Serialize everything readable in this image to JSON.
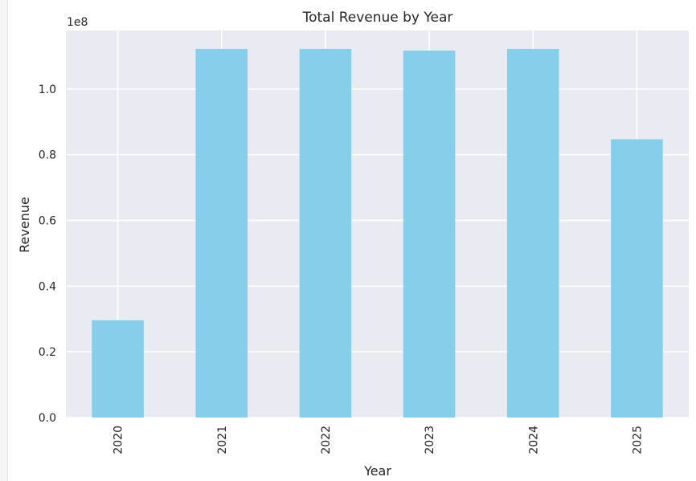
{
  "chart_data": {
    "type": "bar",
    "title": "Total Revenue by Year",
    "xlabel": "Year",
    "ylabel": "Revenue",
    "offset_label": "1e8",
    "categories": [
      "2020",
      "2021",
      "2022",
      "2023",
      "2024",
      "2025"
    ],
    "values": [
      29600000,
      112200000,
      112200000,
      111700000,
      112200000,
      84700000
    ],
    "ylim": [
      0,
      117800000
    ],
    "yticks": [
      0,
      20000000,
      40000000,
      60000000,
      80000000,
      100000000
    ],
    "ytick_labels": [
      "0.0",
      "0.2",
      "0.4",
      "0.6",
      "0.8",
      "1.0"
    ],
    "grid": true,
    "colors": {
      "bar": "#87ceeb",
      "axes_bg": "#eaeaf2",
      "grid": "#ffffff"
    }
  }
}
